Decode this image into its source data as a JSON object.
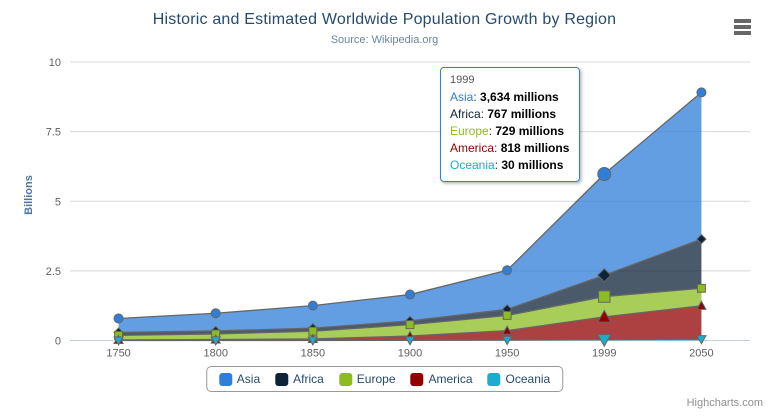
{
  "title": "Historic and Estimated Worldwide Population Growth by Region",
  "subtitle": "Source: Wikipedia.org",
  "y_axis_title": "Billions",
  "credits": "Highcharts.com",
  "chart_data": {
    "type": "area",
    "stacking": "normal",
    "title": "Historic and Estimated Worldwide Population Growth by Region",
    "subtitle": "Source: Wikipedia.org",
    "ylabel": "Billions",
    "units": "millions",
    "categories": [
      "1750",
      "1800",
      "1850",
      "1900",
      "1950",
      "1999",
      "2050"
    ],
    "series": [
      {
        "name": "Asia",
        "color": "#2f7ed8",
        "marker": "circle",
        "values": [
          502,
          635,
          809,
          947,
          1402,
          3634,
          5268
        ]
      },
      {
        "name": "Africa",
        "color": "#0d233a",
        "marker": "diamond",
        "values": [
          106,
          107,
          111,
          133,
          221,
          767,
          1766
        ]
      },
      {
        "name": "Europe",
        "color": "#8bbc21",
        "marker": "square",
        "values": [
          163,
          203,
          276,
          408,
          547,
          729,
          628
        ]
      },
      {
        "name": "America",
        "color": "#910000",
        "marker": "triangle",
        "values": [
          18,
          31,
          54,
          156,
          339,
          818,
          1201
        ]
      },
      {
        "name": "Oceania",
        "color": "#1aadce",
        "marker": "triangle-down",
        "values": [
          2,
          2,
          2,
          6,
          13,
          30,
          46
        ]
      }
    ],
    "yticks": [
      0,
      2.5,
      5,
      7.5,
      10
    ],
    "ylim": [
      0,
      10
    ],
    "grid": true,
    "legend_position": "bottom",
    "hover_category": "1999"
  },
  "tooltip": {
    "header": "1999",
    "rows": [
      {
        "name": "Asia",
        "value": "3,634 millions"
      },
      {
        "name": "Africa",
        "value": "767 millions"
      },
      {
        "name": "Europe",
        "value": "729 millions"
      },
      {
        "name": "America",
        "value": "818 millions"
      },
      {
        "name": "Oceania",
        "value": "30 millions"
      }
    ]
  },
  "theme": {
    "line_color": "#666666",
    "grid_color": "#d8d8d8",
    "axis_line_color": "#c0d0e0",
    "label_color": "#606060",
    "title_color": "#274b6d",
    "subtitle_color": "#6d869f",
    "axis_title_color": "#4d759e",
    "legend_text_color": "#274b6d",
    "tooltip_border_color": "#2f7ed8",
    "fill_opacity": 0.75
  }
}
